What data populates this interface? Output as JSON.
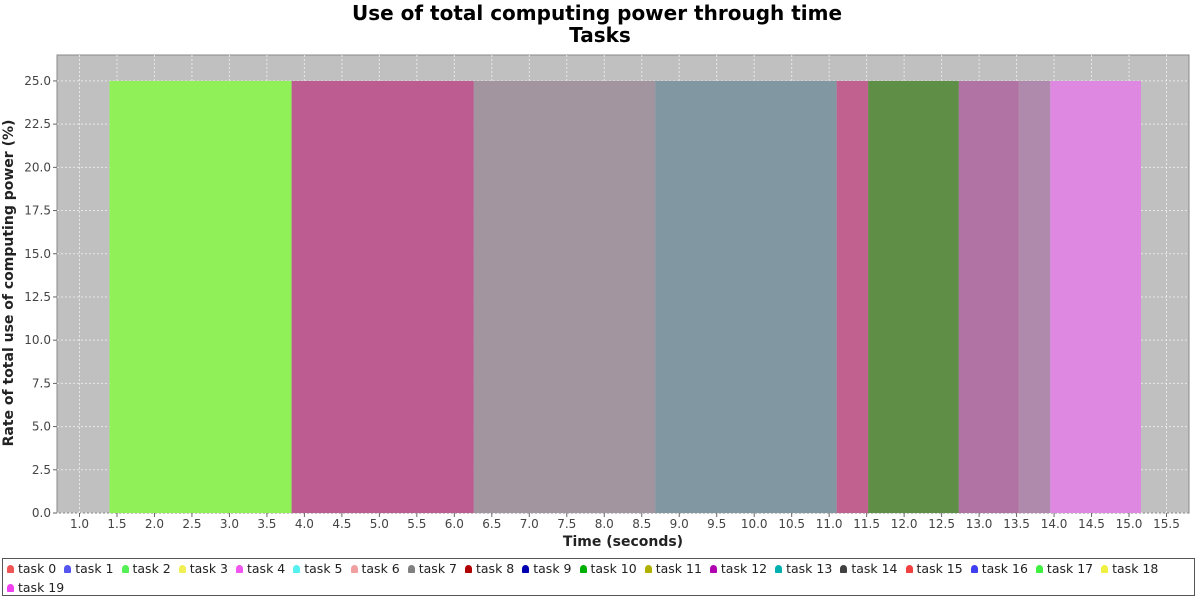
{
  "chart_data": {
    "type": "area",
    "title": "Use of total computing power through time",
    "subtitle": "Tasks",
    "xlabel": "Time (seconds)",
    "ylabel": "Rate of total use of computing power (%)",
    "xlim": [
      0.7,
      15.8
    ],
    "ylim": [
      0,
      26.5
    ],
    "x_ticks": [
      "1.0",
      "1.5",
      "2.0",
      "2.5",
      "3.0",
      "3.5",
      "4.0",
      "4.5",
      "5.0",
      "5.5",
      "6.0",
      "6.5",
      "7.0",
      "7.5",
      "8.0",
      "8.5",
      "9.0",
      "9.5",
      "10.0",
      "10.5",
      "11.0",
      "11.5",
      "12.0",
      "12.5",
      "13.0",
      "13.5",
      "14.0",
      "14.5",
      "15.0",
      "15.5"
    ],
    "y_ticks": [
      "0.0",
      "2.5",
      "5.0",
      "7.5",
      "10.0",
      "12.5",
      "15.0",
      "17.5",
      "20.0",
      "22.5",
      "25.0"
    ],
    "grid": true,
    "segments": [
      {
        "x_start": 1.4,
        "x_end": 3.83,
        "value": 25,
        "color": "#90f058"
      },
      {
        "x_start": 3.83,
        "x_end": 6.26,
        "value": 25,
        "color": "#bd5c91"
      },
      {
        "x_start": 6.26,
        "x_end": 8.68,
        "value": 25,
        "color": "#a3959f"
      },
      {
        "x_start": 8.68,
        "x_end": 11.1,
        "value": 25,
        "color": "#8198a2"
      },
      {
        "x_start": 11.1,
        "x_end": 11.52,
        "value": 25,
        "color": "#c06190"
      },
      {
        "x_start": 11.52,
        "x_end": 12.73,
        "value": 25,
        "color": "#5f8e47"
      },
      {
        "x_start": 12.73,
        "x_end": 13.53,
        "value": 25,
        "color": "#b073a3"
      },
      {
        "x_start": 13.53,
        "x_end": 13.95,
        "value": 25,
        "color": "#b08aad"
      },
      {
        "x_start": 13.95,
        "x_end": 15.16,
        "value": 25,
        "color": "#df88e2"
      }
    ],
    "legend_position": "bottom",
    "legend": [
      {
        "name": "task 0",
        "color": "#f05555"
      },
      {
        "name": "task 1",
        "color": "#5555f0"
      },
      {
        "name": "task 2",
        "color": "#55f055"
      },
      {
        "name": "task 3",
        "color": "#f0f055"
      },
      {
        "name": "task 4",
        "color": "#f055f0"
      },
      {
        "name": "task 5",
        "color": "#55f0f0"
      },
      {
        "name": "task 6",
        "color": "#f0a0a0"
      },
      {
        "name": "task 7",
        "color": "#808080"
      },
      {
        "name": "task 8",
        "color": "#b00000"
      },
      {
        "name": "task 9",
        "color": "#0000b0"
      },
      {
        "name": "task 10",
        "color": "#00b000"
      },
      {
        "name": "task 11",
        "color": "#b0b000"
      },
      {
        "name": "task 12",
        "color": "#b000b0"
      },
      {
        "name": "task 13",
        "color": "#00b0b0"
      },
      {
        "name": "task 14",
        "color": "#404040"
      },
      {
        "name": "task 15",
        "color": "#f04040"
      },
      {
        "name": "task 16",
        "color": "#4040f0"
      },
      {
        "name": "task 17",
        "color": "#40f040"
      },
      {
        "name": "task 18",
        "color": "#f0f040"
      },
      {
        "name": "task 19",
        "color": "#f040f0"
      }
    ]
  }
}
